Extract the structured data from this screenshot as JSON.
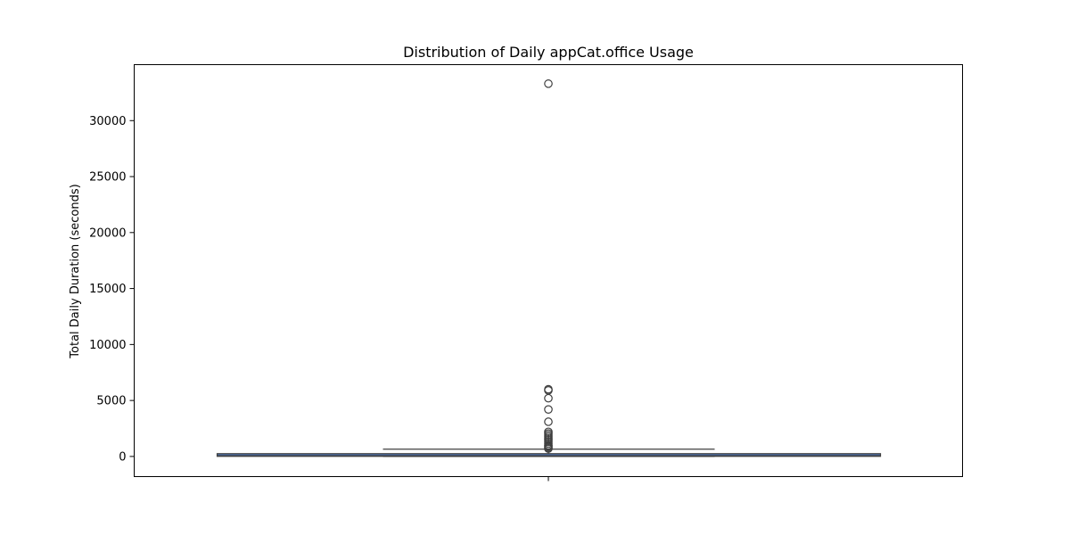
{
  "chart_data": {
    "type": "box",
    "title": "Distribution of Daily appCat.office Usage",
    "xlabel": "",
    "ylabel": "Total Daily Duration (seconds)",
    "ylim": [
      -1800,
      35000
    ],
    "yticks": [
      0,
      5000,
      10000,
      15000,
      20000,
      25000,
      30000
    ],
    "grid": false,
    "colors": {
      "box": "#4c72b0",
      "edge": "#3f3f3f",
      "outlier": "#3f3f3f"
    },
    "box": {
      "q1": 10,
      "median": 60,
      "q3": 250,
      "whisker_low": 0,
      "whisker_high": 650
    },
    "outliers": [
      33300,
      6000,
      5900,
      5200,
      4200,
      3100,
      2200,
      2050,
      1900,
      1750,
      1600,
      1450,
      1300,
      1150,
      1000,
      900,
      800,
      700
    ]
  }
}
